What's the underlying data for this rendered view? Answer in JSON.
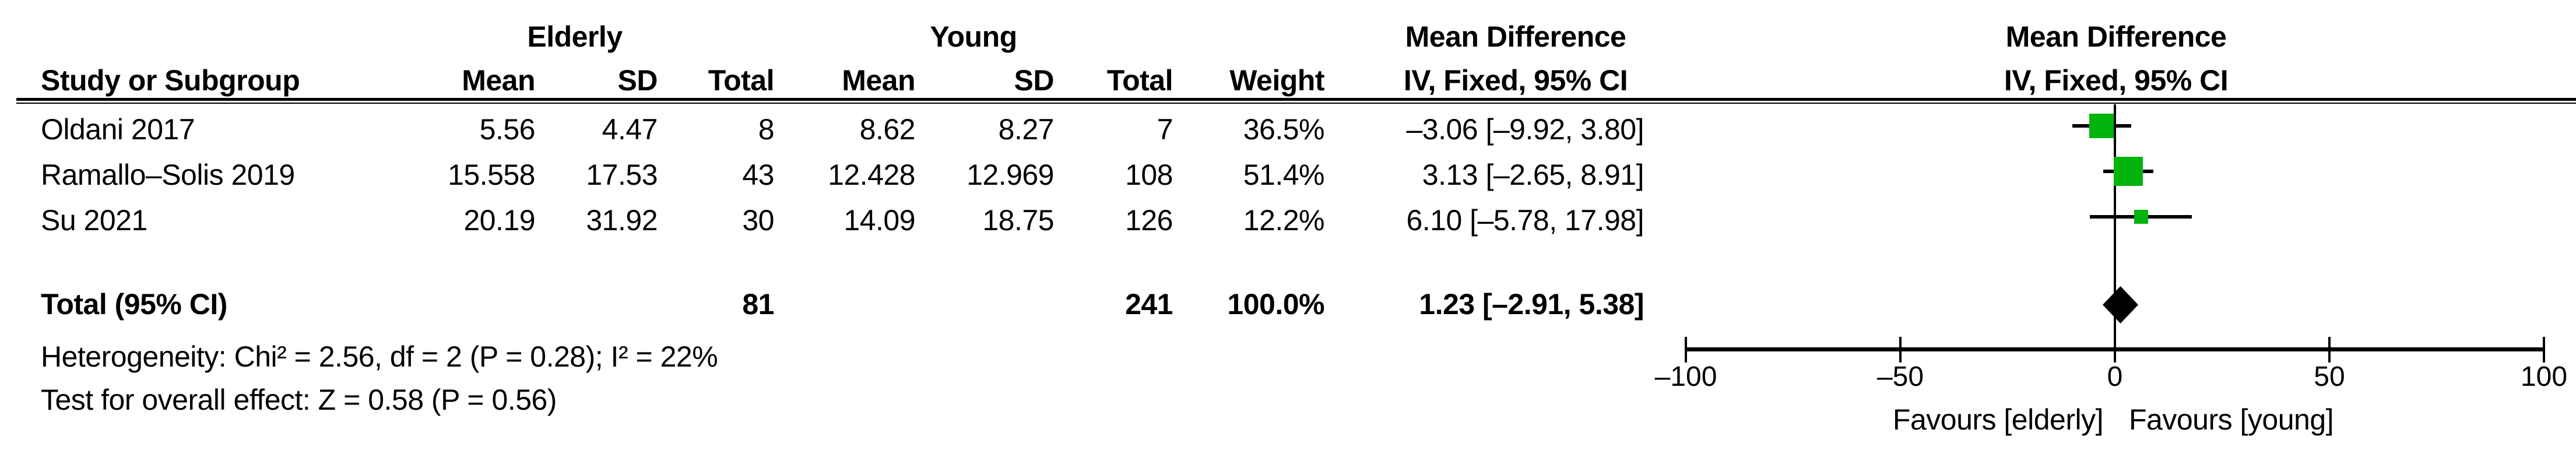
{
  "header": {
    "elderly": "Elderly",
    "young": "Young",
    "md_line1": "Mean Difference",
    "md_line2": "IV, Fixed, 95% CI",
    "plot_line1": "Mean Difference",
    "plot_line2": "IV, Fixed, 95% CI",
    "study": "Study or Subgroup",
    "mean": "Mean",
    "sd": "SD",
    "total": "Total",
    "weight": "Weight"
  },
  "table": {
    "rows": [
      {
        "study": "Oldani 2017",
        "mean1": "5.56",
        "sd1": "4.47",
        "total1": "8",
        "mean2": "8.62",
        "sd2": "8.27",
        "total2": "7",
        "weight": "36.5%",
        "md_ci": "–3.06 [–9.92, 3.80]"
      },
      {
        "study": "Ramallo–Solis 2019",
        "mean1": "15.558",
        "sd1": "17.53",
        "total1": "43",
        "mean2": "12.428",
        "sd2": "12.969",
        "total2": "108",
        "weight": "51.4%",
        "md_ci": "3.13 [–2.65, 8.91]"
      },
      {
        "study": "Su 2021",
        "mean1": "20.19",
        "sd1": "31.92",
        "total1": "30",
        "mean2": "14.09",
        "sd2": "18.75",
        "total2": "126",
        "weight": "12.2%",
        "md_ci": "6.10 [–5.78, 17.98]"
      }
    ],
    "total_row": {
      "label": "Total (95% CI)",
      "total1": "81",
      "total2": "241",
      "weight": "100.0%",
      "md_ci": "1.23 [–2.91, 5.38]"
    },
    "footnotes": {
      "heterogeneity": "Heterogeneity: Chi² = 2.56, df = 2 (P = 0.28); I² = 22%",
      "overall_effect": "Test for overall effect: Z = 0.58 (P = 0.56)"
    }
  },
  "chart_data": {
    "type": "forest",
    "effect_measure": "Mean Difference",
    "method": "IV, Fixed, 95% CI",
    "studies": [
      {
        "name": "Oldani 2017",
        "md": -3.06,
        "ci_low": -9.92,
        "ci_high": 3.8,
        "weight_pct": 36.5
      },
      {
        "name": "Ramallo–Solis 2019",
        "md": 3.13,
        "ci_low": -2.65,
        "ci_high": 8.91,
        "weight_pct": 51.4
      },
      {
        "name": "Su 2021",
        "md": 6.1,
        "ci_low": -5.78,
        "ci_high": 17.98,
        "weight_pct": 12.2
      }
    ],
    "total": {
      "label": "Total (95% CI)",
      "md": 1.23,
      "ci_low": -2.91,
      "ci_high": 5.38,
      "weight_pct": 100.0
    },
    "axis": {
      "min": -100,
      "max": 100,
      "ticks": [
        -100,
        -50,
        0,
        50,
        100
      ],
      "tick_labels": [
        "–100",
        "–50",
        "0",
        "50",
        "100"
      ]
    },
    "favours_left": "Favours [elderly]",
    "favours_right": "Favours [young]",
    "marker_color": "#00b40c",
    "diamond_color": "#000000",
    "line_color": "#000000"
  }
}
